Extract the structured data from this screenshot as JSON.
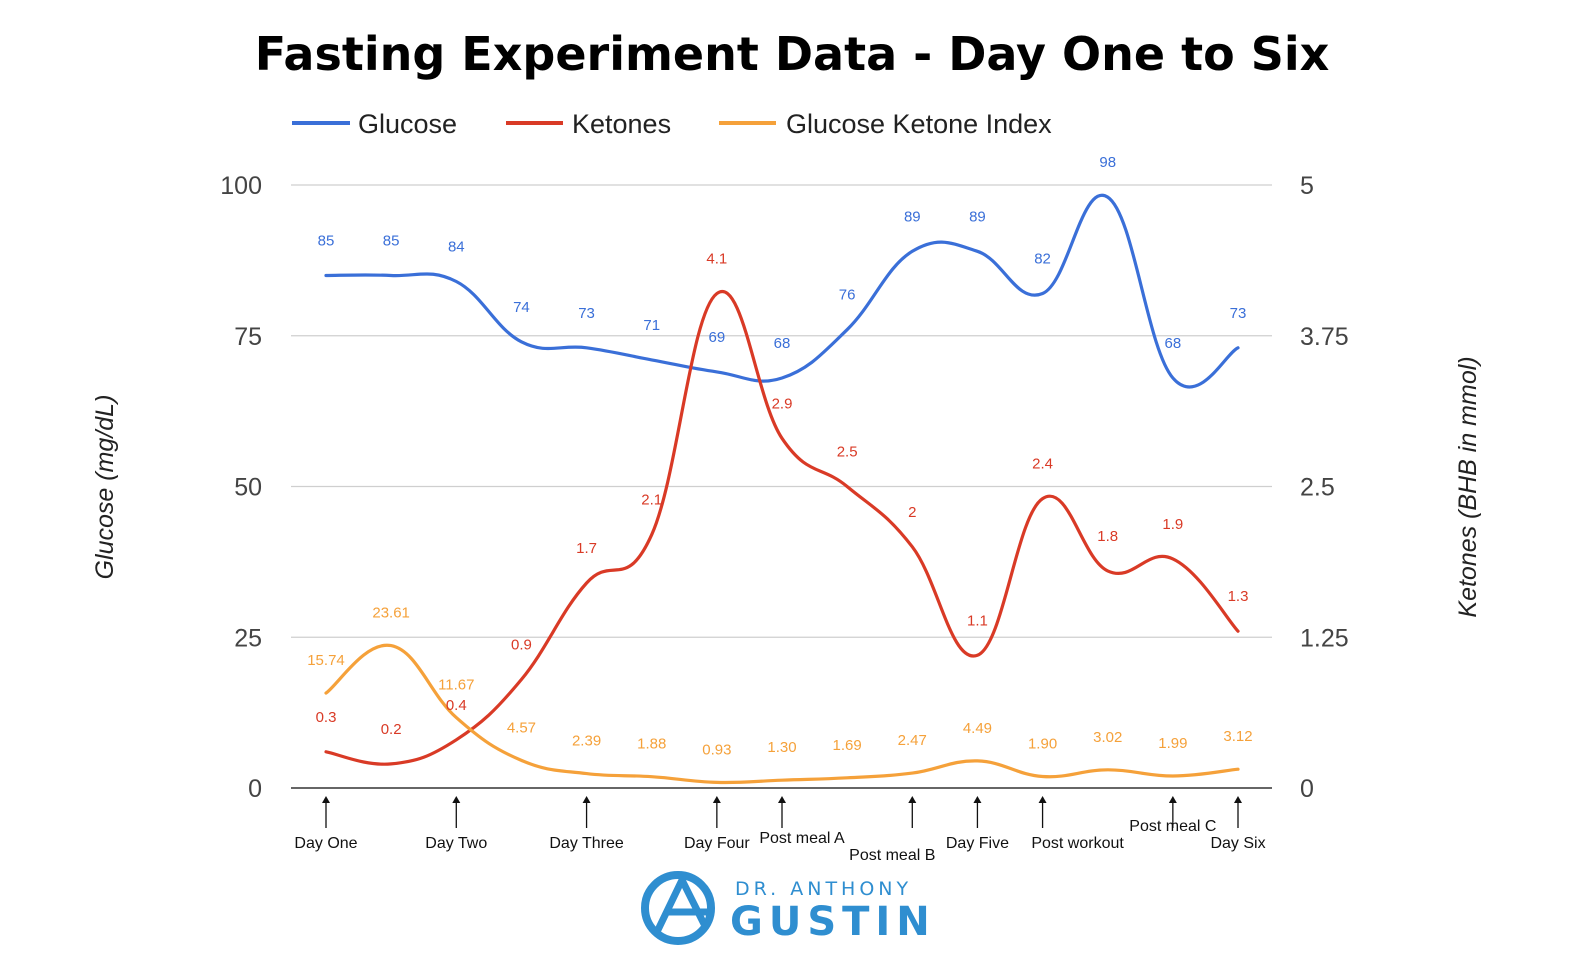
{
  "chart_data": {
    "type": "line",
    "title": "Fasting Experiment Data - Day One to Six",
    "ylabel_left": "Glucose (mg/dL)",
    "ylabel_right": "Ketones (BHB in mmol)",
    "ylim_left": [
      0,
      100
    ],
    "ylim_right": [
      0,
      5
    ],
    "yticks_left": [
      "0",
      "25",
      "50",
      "75",
      "100"
    ],
    "yticks_right": [
      "0",
      "1.25",
      "2.5",
      "3.75",
      "5"
    ],
    "grid": true,
    "legend_position": "top",
    "x_points": 15,
    "series": [
      {
        "name": "Glucose",
        "axis": "left",
        "color": "#3a6fd8",
        "values": [
          85,
          85,
          84,
          74,
          73,
          71,
          69,
          68,
          76,
          89,
          89,
          82,
          98,
          68,
          73
        ],
        "labels": [
          "85",
          "85",
          "84",
          "74",
          "73",
          "71",
          "69",
          "68",
          "76",
          "89",
          "89",
          "82",
          "98",
          "68",
          "73"
        ]
      },
      {
        "name": "Ketones",
        "axis": "right",
        "color": "#d93a26",
        "values": [
          0.3,
          0.2,
          0.4,
          0.9,
          1.7,
          2.1,
          4.1,
          2.9,
          2.5,
          2,
          1.1,
          2.4,
          1.8,
          1.9,
          1.3
        ],
        "labels": [
          "0.3",
          "0.2",
          "0.4",
          "0.9",
          "1.7",
          "2.1",
          "4.1",
          "2.9",
          "2.5",
          "2",
          "1.1",
          "2.4",
          "1.8",
          "1.9",
          "1.3"
        ]
      },
      {
        "name": "Glucose Ketone Index",
        "axis": "left",
        "color": "#f5a13a",
        "values": [
          15.74,
          23.61,
          11.67,
          4.57,
          2.39,
          1.88,
          0.93,
          1.3,
          1.69,
          2.47,
          4.49,
          1.9,
          3.02,
          1.99,
          3.12
        ],
        "labels": [
          "15.74",
          "23.61",
          "11.67",
          "4.57",
          "2.39",
          "1.88",
          "0.93",
          "1.30",
          "1.69",
          "2.47",
          "4.49",
          "1.90",
          "3.02",
          "1.99",
          "3.12"
        ]
      }
    ],
    "annotations": [
      {
        "label": "Day One",
        "point": 0
      },
      {
        "label": "Day Two",
        "point": 2
      },
      {
        "label": "Day Three",
        "point": 4
      },
      {
        "label": "Day Four",
        "point": 6
      },
      {
        "label": "Post meal A",
        "point": 7
      },
      {
        "label": "Post meal B",
        "point": 9
      },
      {
        "label": "Day Five",
        "point": 10
      },
      {
        "label": "Post workout",
        "point": 11
      },
      {
        "label": "Post meal C",
        "point": 13
      },
      {
        "label": "Day Six",
        "point": 14
      }
    ]
  },
  "branding": {
    "small": "DR. ANTHONY",
    "big": "GUSTIN",
    "color": "#2f8ed0"
  }
}
